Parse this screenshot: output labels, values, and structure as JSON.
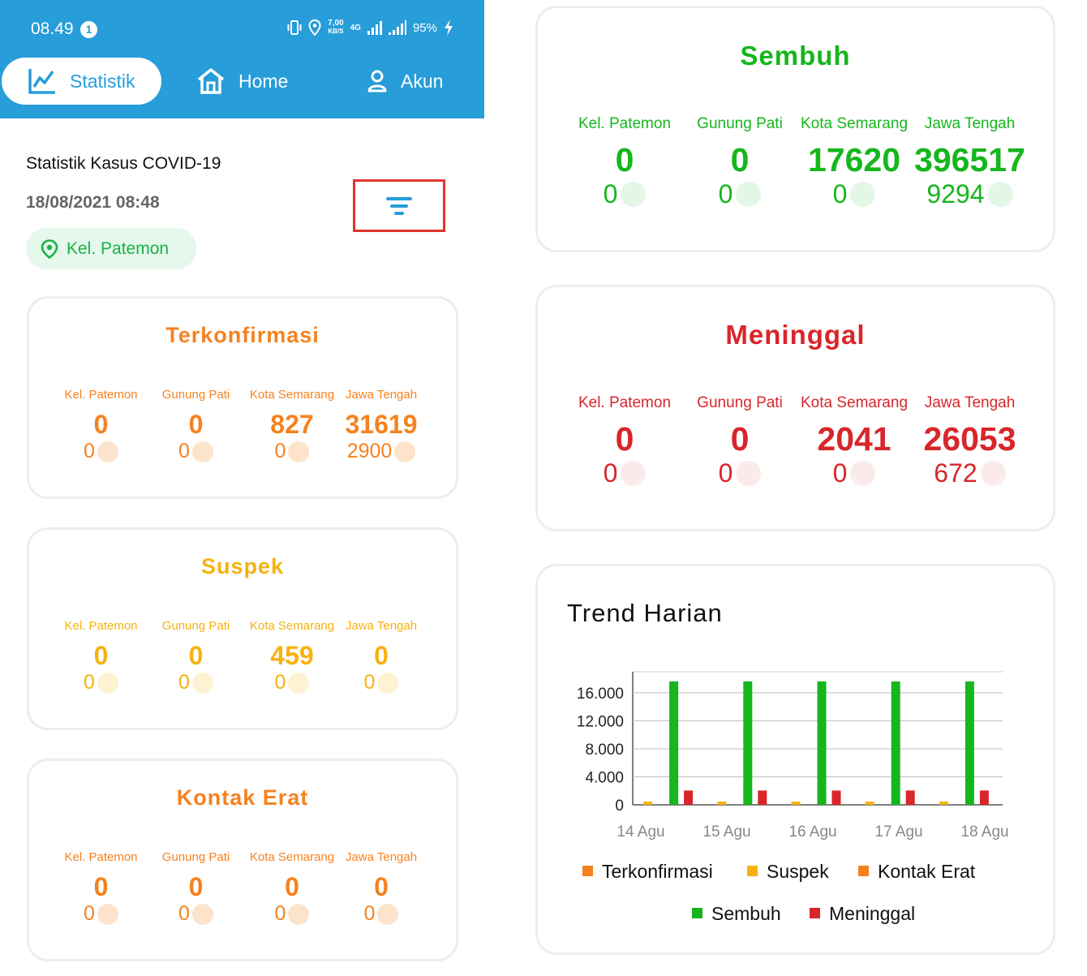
{
  "status_bar": {
    "time": "08.49",
    "notification_count": "1",
    "network_speed_value": "7,00",
    "network_speed_unit": "KB/S",
    "network_type": "4G",
    "battery": "95%"
  },
  "nav": {
    "statistik_label": "Statistik",
    "home_label": "Home",
    "akun_label": "Akun"
  },
  "header": {
    "title": "Statistik Kasus COVID-19",
    "datetime": "18/08/2021 08:48",
    "location": "Kel. Patemon"
  },
  "columns": [
    "Kel. Patemon",
    "Gunung Pati",
    "Kota Semarang",
    "Jawa Tengah"
  ],
  "cards": {
    "terkonfirmasi": {
      "title": "Terkonfirmasi",
      "color": "#f5821f",
      "dot_color": "#fde3cc",
      "values": [
        "0",
        "0",
        "827",
        "31619"
      ],
      "deltas": [
        "0",
        "0",
        "0",
        "2900"
      ]
    },
    "suspek": {
      "title": "Suspek",
      "color": "#f6b20f",
      "dot_color": "#fdf3d3",
      "values": [
        "0",
        "0",
        "459",
        "0"
      ],
      "deltas": [
        "0",
        "0",
        "0",
        "0"
      ]
    },
    "kontak_erat": {
      "title": "Kontak Erat",
      "color": "#f5821f",
      "dot_color": "#fde3cc",
      "values": [
        "0",
        "0",
        "0",
        "0"
      ],
      "deltas": [
        "0",
        "0",
        "0",
        "0"
      ]
    },
    "sembuh": {
      "title": "Sembuh",
      "color": "#16b61d",
      "dot_color": "#e3f7e6",
      "values": [
        "0",
        "0",
        "17620",
        "396517"
      ],
      "deltas": [
        "0",
        "0",
        "0",
        "9294"
      ]
    },
    "meninggal": {
      "title": "Meninggal",
      "color": "#d8262a",
      "dot_color": "#fbeaea",
      "values": [
        "0",
        "0",
        "2041",
        "26053"
      ],
      "deltas": [
        "0",
        "0",
        "0",
        "672"
      ]
    }
  },
  "chart_data": {
    "type": "bar",
    "title": "Trend Harian",
    "categories": [
      "14 Agu",
      "15 Agu",
      "16 Agu",
      "17 Agu",
      "18 Agu"
    ],
    "y_ticks": [
      "0",
      "4.000",
      "8.000",
      "12.000",
      "16.000"
    ],
    "ylim": [
      0,
      19000
    ],
    "grid": true,
    "legend_placement": "bottom",
    "series": [
      {
        "name": "Terkonfirmasi",
        "color": "#f5821f",
        "values": [
          0,
          0,
          0,
          0,
          0
        ]
      },
      {
        "name": "Suspek",
        "color": "#f6b20f",
        "values": [
          459,
          459,
          459,
          459,
          459
        ]
      },
      {
        "name": "Kontak Erat",
        "color": "#f5821f",
        "values": [
          0,
          0,
          0,
          0,
          0
        ]
      },
      {
        "name": "Sembuh",
        "color": "#16b61d",
        "values": [
          17620,
          17620,
          17620,
          17620,
          17620
        ]
      },
      {
        "name": "Meninggal",
        "color": "#d8262a",
        "values": [
          2041,
          2041,
          2041,
          2041,
          2041
        ]
      }
    ]
  }
}
